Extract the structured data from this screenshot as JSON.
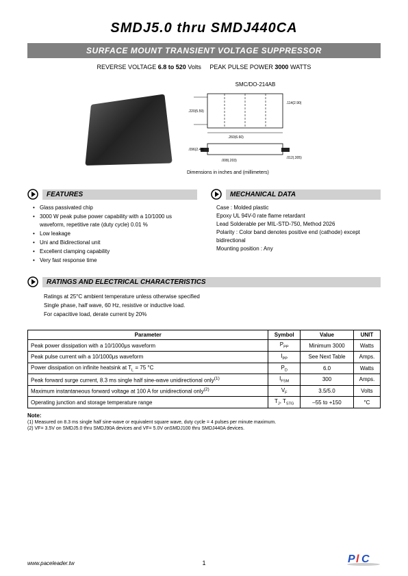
{
  "header": {
    "title": "SMDJ5.0  thru  SMDJ440CA",
    "subtitle": "SURFACE MOUNT TRANSIENT VOLTAGE SUPPRESSOR",
    "rev_voltage_label": "REVERSE VOLTAGE",
    "rev_voltage_range": "6.8 to 520",
    "rev_voltage_unit": "Volts",
    "peak_power_label": "PEAK PULSE POWER",
    "peak_power_value": "3000",
    "peak_power_unit": "WATTS"
  },
  "mech_drawing": {
    "caption": "SMC/DO-214AB",
    "dim_note": "Dimensions in inches and (millimeters)"
  },
  "features": {
    "heading": "FEATURES",
    "items": [
      "Glass passivated chip",
      "3000 W peak pulse power capability with a 10/1000 us  waveform, repetitive rate (duty cycle) 0.01 %",
      "Low leakage",
      "Uni and Bidirectional unit",
      "Excellent clamping capability",
      "Very fast response time"
    ]
  },
  "mechdata": {
    "heading": "MECHANICAL DATA",
    "lines": [
      "Case :  Molded plastic",
      "Epoxy   UL 94V-0 rate flame retardant",
      "Lead   Solderable per MIL-STD-750, Method 2026",
      "Polarity : Color band denotes  positive end (cathode) except bidirectional",
      "Mounting position : Any"
    ]
  },
  "ratings": {
    "heading": "RATINGS AND ELECTRICAL CHARACTERISTICS",
    "intro": [
      "Ratings at 25°C ambient temperature unless otherwise specified",
      "Single phase, half wave, 60 Hz, resistive or inductive load.",
      "For capacitive load, derate current by 20%"
    ],
    "columns": [
      "Parameter",
      "Symbol",
      "Value",
      "UNIT"
    ],
    "rows": [
      {
        "param": "Peak power dissipation with a 10/1000μs waveform",
        "symbol": "P<sub>PP</sub>",
        "value": "Minimum 3000",
        "unit": "Watts"
      },
      {
        "param": "Peak pulse current wih a 10/1000μs waveform",
        "symbol": "I<sub>PP</sub>",
        "value": "See Next Table",
        "unit": "Amps."
      },
      {
        "param": "Power dissipation on infinite heatsink at T<sub>L</sub> = 75 °C",
        "symbol": "P<sub>D</sub>",
        "value": "6.0",
        "unit": "Watts"
      },
      {
        "param": "Peak forward surge current, 8.3 ms single half sine-wave unidirectional only<sup>(1)</sup>",
        "symbol": "I<sub>FSM</sub>",
        "value": "300",
        "unit": "Amps."
      },
      {
        "param": "Maximum instantaneous forward voltage at 100 A for unidirectional only<sup>(2)</sup>",
        "symbol": "V<sub>F</sub>",
        "value": "3.5/5.0",
        "unit": "Volts"
      },
      {
        "param": "Operating junction and storage temperature range",
        "symbol": "T<sub>J</sub>, T<sub>STG</sub>",
        "value": "–55 to +150",
        "unit": "°C"
      }
    ],
    "note_heading": "Note:",
    "notes": [
      "(1) Measured on 8.3 ms single half sine-wave or equivalent square wave, duty cycle = 4 pulses per minute maximum.",
      "(2) VF= 3.5V on SMDJ5.0 thru SMDJ90A devices and VF= 5.0V onSMDJ100 thru SMDJ440A devices."
    ]
  },
  "footer": {
    "url": "www.paceleader.tw",
    "page": "1"
  },
  "colors": {
    "bar_bg": "#808080",
    "section_bg": "#d0d0d0",
    "logo_blue": "#2050c0",
    "logo_red": "#e03030"
  }
}
